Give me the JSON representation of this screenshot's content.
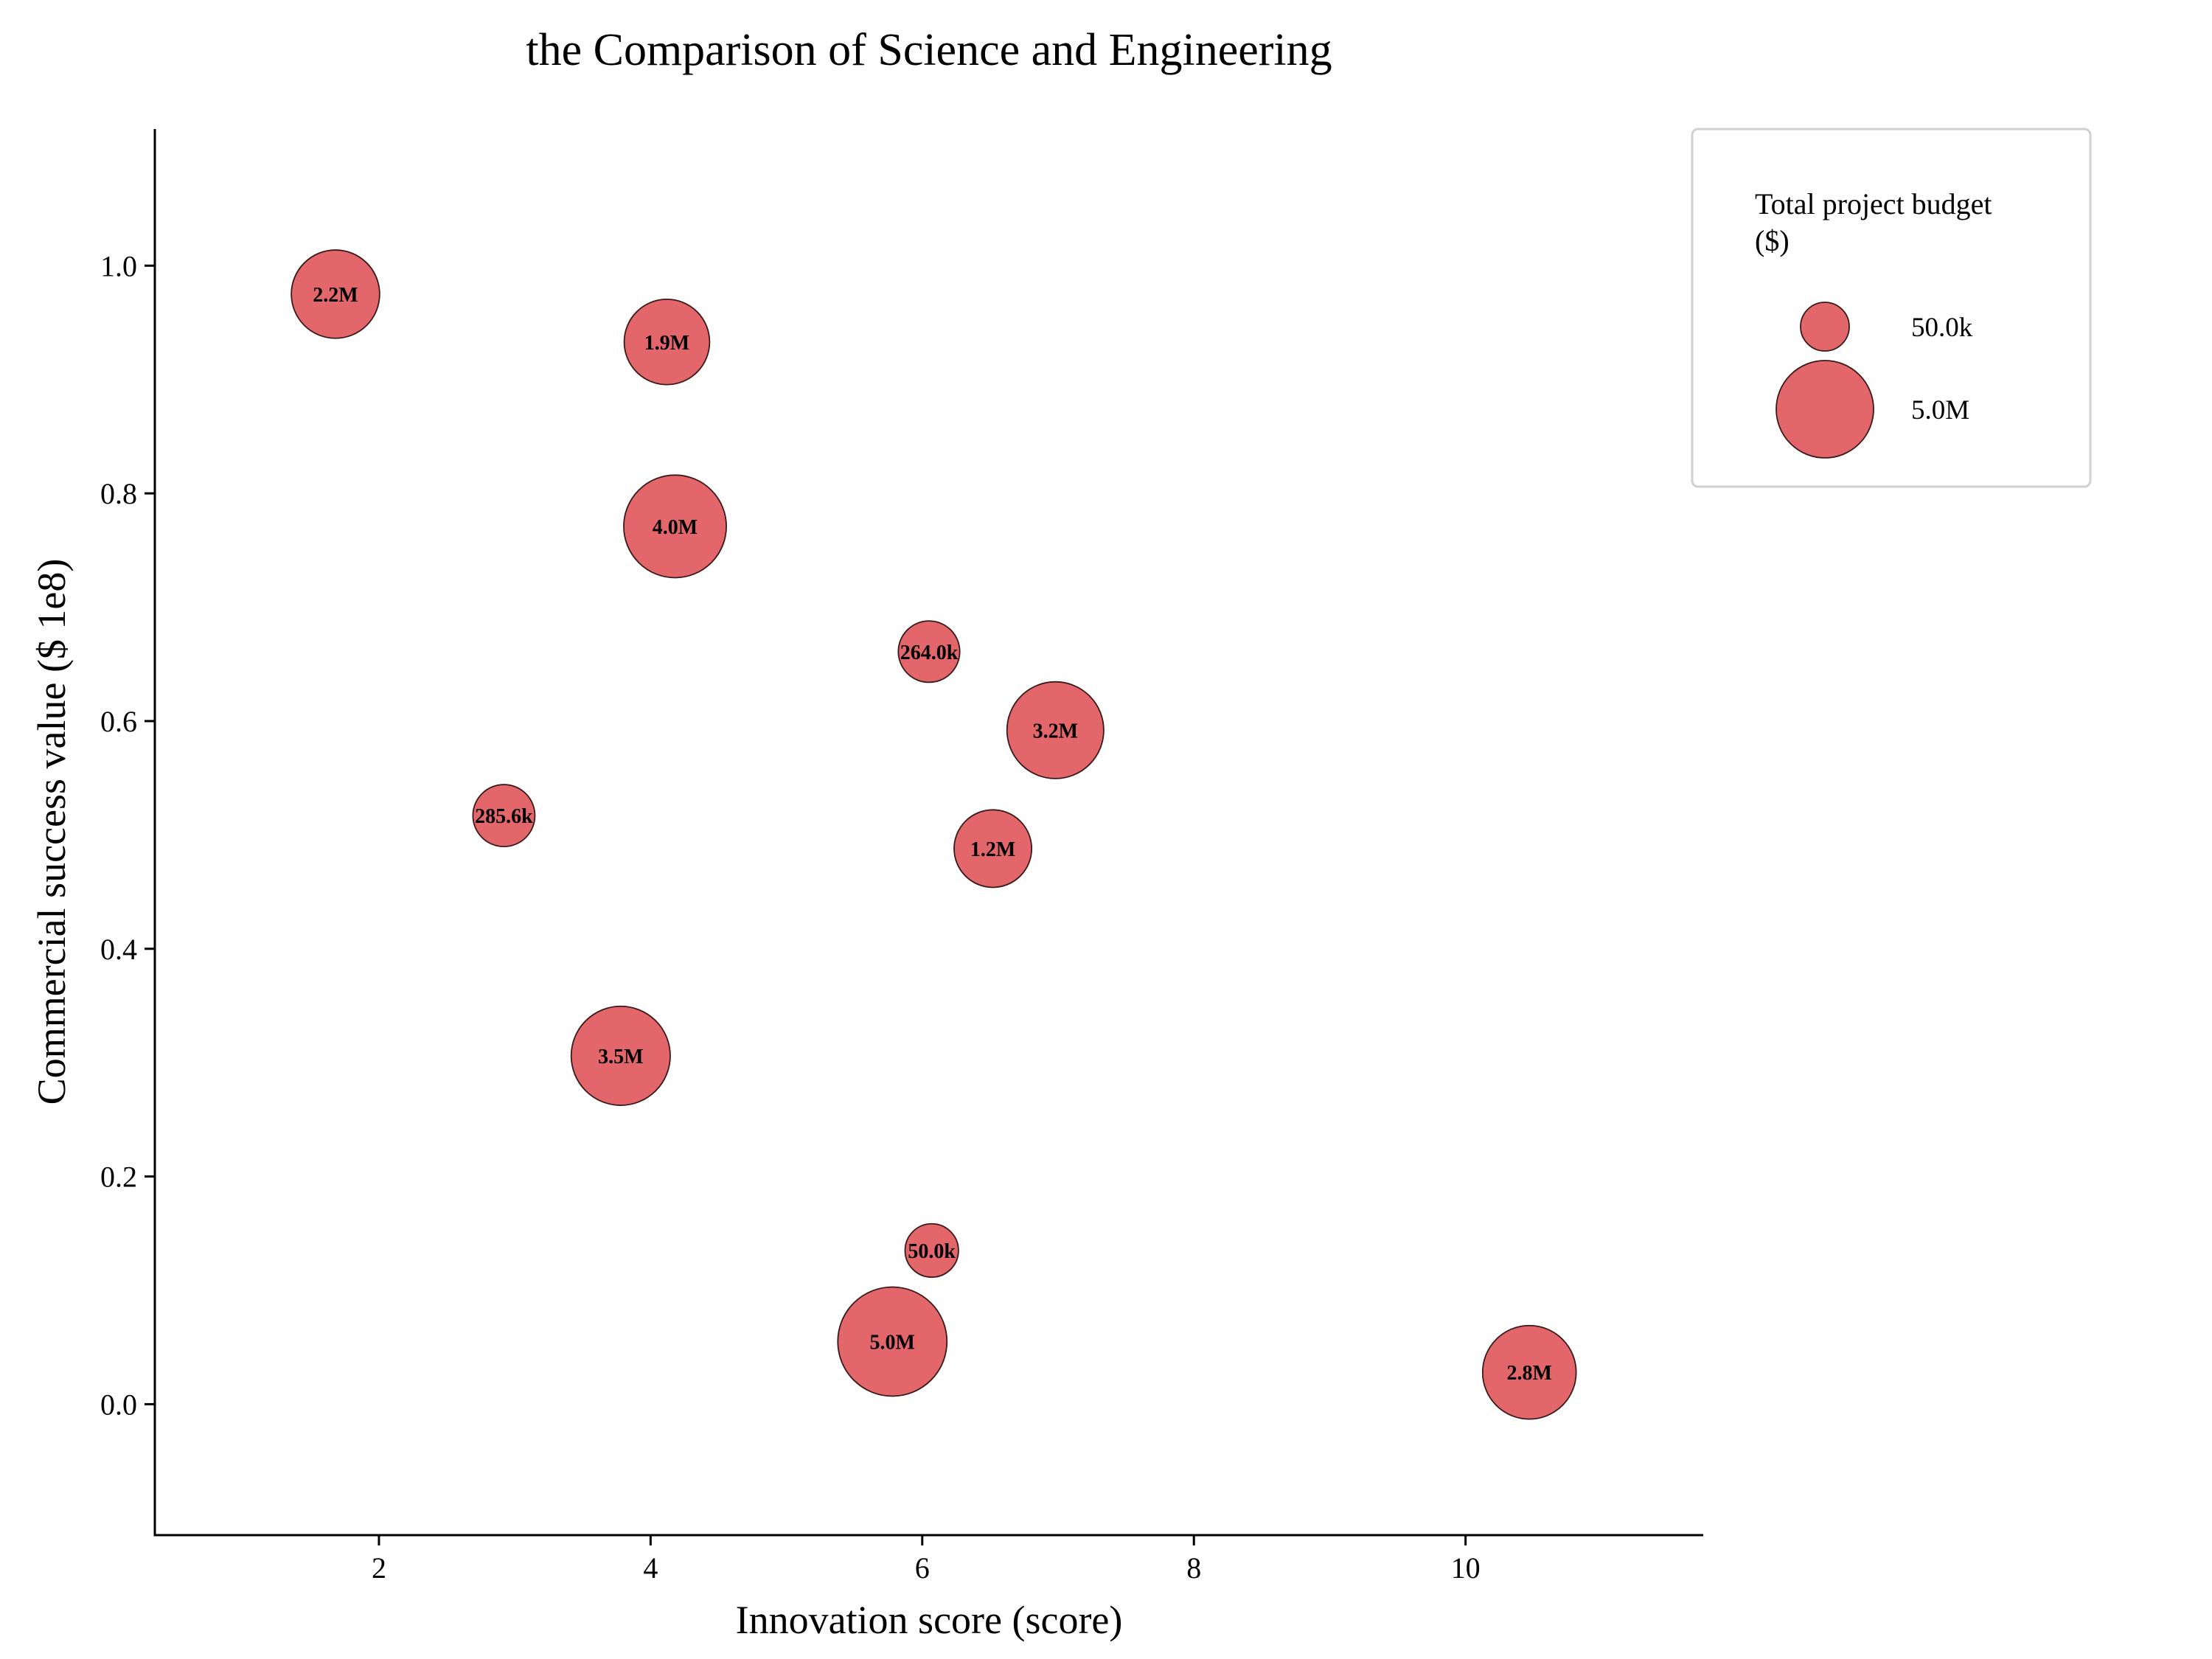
{
  "chart_data": {
    "type": "scatter",
    "title": "the Comparison of Science and Engineering",
    "xlabel": "Innovation score (score)",
    "ylabel": "Commercial success value ($ 1e8)",
    "xlim": [
      0.35,
      11.75
    ],
    "ylim": [
      -0.115,
      1.12
    ],
    "xticks": [
      2,
      4,
      6,
      8,
      10
    ],
    "yticks": [
      0.0,
      0.2,
      0.4,
      0.6,
      0.8,
      1.0
    ],
    "xtick_labels": [
      "2",
      "4",
      "6",
      "8",
      "10"
    ],
    "ytick_labels": [
      "0.0",
      "0.2",
      "0.4",
      "0.6",
      "0.8",
      "1.0"
    ],
    "grid": false,
    "size_variable": "Total project budget ($)",
    "marker_color": "#e3676a",
    "edge_color": "#3a1a1a",
    "points": [
      {
        "x": 1.68,
        "y": 0.975,
        "size": 2200000,
        "label": "2.2M"
      },
      {
        "x": 4.12,
        "y": 0.933,
        "size": 1900000,
        "label": "1.9M"
      },
      {
        "x": 4.18,
        "y": 0.771,
        "size": 4000000,
        "label": "4.0M"
      },
      {
        "x": 6.05,
        "y": 0.661,
        "size": 264000,
        "label": "264.0k"
      },
      {
        "x": 6.98,
        "y": 0.592,
        "size": 3200000,
        "label": "3.2M"
      },
      {
        "x": 2.92,
        "y": 0.517,
        "size": 285600,
        "label": "285.6k"
      },
      {
        "x": 6.52,
        "y": 0.488,
        "size": 1200000,
        "label": "1.2M"
      },
      {
        "x": 3.78,
        "y": 0.306,
        "size": 3500000,
        "label": "3.5M"
      },
      {
        "x": 6.07,
        "y": 0.135,
        "size": 50000,
        "label": "50.0k"
      },
      {
        "x": 5.78,
        "y": 0.055,
        "size": 5000000,
        "label": "5.0M"
      },
      {
        "x": 10.47,
        "y": 0.028,
        "size": 2800000,
        "label": "2.8M"
      }
    ],
    "legend": {
      "title": "Total project budget ($)",
      "title_lines": [
        "Total project budget",
        "($)"
      ],
      "placement": "top-right, outside plot",
      "entries": [
        {
          "size": 50000,
          "label": "50.0k"
        },
        {
          "size": 5000000,
          "label": "5.0M"
        }
      ]
    }
  }
}
